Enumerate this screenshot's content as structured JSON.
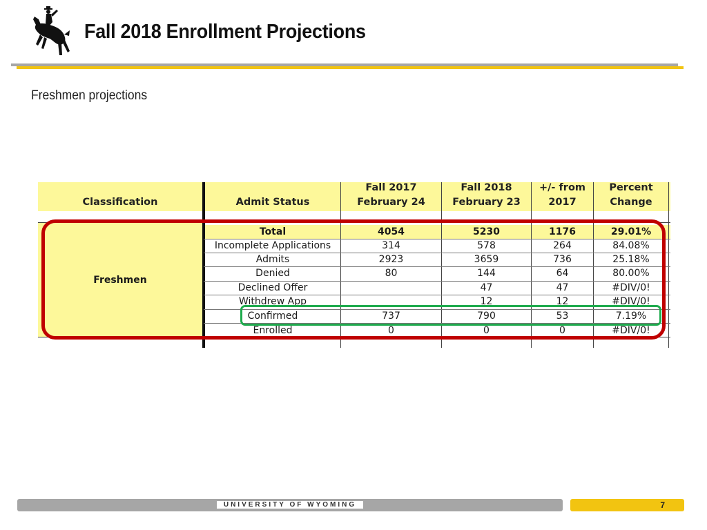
{
  "slide": {
    "title": "Fall 2018 Enrollment Projections",
    "subtitle": "Freshmen projections"
  },
  "table": {
    "headers": {
      "classification": "Classification",
      "admit_status": "Admit Status",
      "fall2017": [
        "Fall 2017",
        "February 24"
      ],
      "fall2018": [
        "Fall 2018",
        "February 23"
      ],
      "change": [
        "+/- from",
        "2017"
      ],
      "percent": [
        "Percent",
        "Change"
      ]
    },
    "group_label": "Freshmen",
    "rows": [
      {
        "status": "Total",
        "f2017": "4054",
        "f2018": "5230",
        "diff": "1176",
        "pct": "29.01%"
      },
      {
        "status": "Incomplete Applications",
        "f2017": "314",
        "f2018": "578",
        "diff": "264",
        "pct": "84.08%"
      },
      {
        "status": "Admits",
        "f2017": "2923",
        "f2018": "3659",
        "diff": "736",
        "pct": "25.18%"
      },
      {
        "status": "Denied",
        "f2017": "80",
        "f2018": "144",
        "diff": "64",
        "pct": "80.00%"
      },
      {
        "status": "Declined Offer",
        "f2017": "",
        "f2018": "47",
        "diff": "47",
        "pct": "#DIV/0!"
      },
      {
        "status": "Withdrew App",
        "f2017": "",
        "f2018": "12",
        "diff": "12",
        "pct": "#DIV/0!"
      },
      {
        "status": "Confirmed",
        "f2017": "737",
        "f2018": "790",
        "diff": "53",
        "pct": "7.19%"
      },
      {
        "status": "Enrolled",
        "f2017": "0",
        "f2018": "0",
        "diff": "0",
        "pct": "#DIV/0!"
      }
    ]
  },
  "footer": {
    "university": "UNIVERSITY OF WYOMING",
    "page_number": "7"
  },
  "colors": {
    "gold": "#f2c411",
    "gray": "#a6a6a6",
    "table_yellow": "#fdf89a",
    "highlight_red": "#c00000",
    "highlight_green": "#1fab4e"
  }
}
